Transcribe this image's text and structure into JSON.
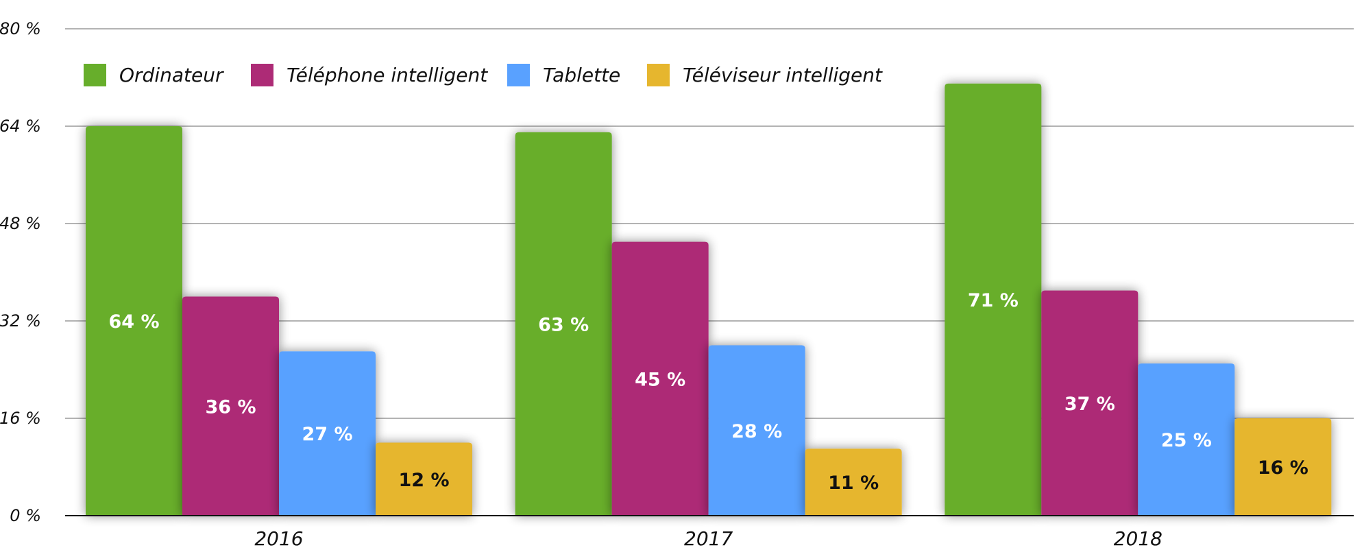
{
  "chart_data": {
    "type": "bar",
    "title": "",
    "xlabel": "",
    "ylabel": "",
    "ylim": [
      0,
      80
    ],
    "yticks": [
      0,
      16,
      32,
      48,
      64,
      80
    ],
    "ytick_labels": [
      "0 %",
      "16 %",
      "32 %",
      "48 %",
      "64 %",
      "80 %"
    ],
    "grid": true,
    "legend_position": "top-left",
    "categories": [
      "2016",
      "2017",
      "2018"
    ],
    "series": [
      {
        "name": "Ordinateur",
        "color": "#67ae2b",
        "label_color": "#ffffff",
        "values": [
          64,
          63,
          71
        ],
        "labels": [
          "64 %",
          "63 %",
          "71 %"
        ]
      },
      {
        "name": "Téléphone intelligent",
        "color": "#ad2b76",
        "label_color": "#ffffff",
        "values": [
          36,
          45,
          37
        ],
        "labels": [
          "36 %",
          "45 %",
          "37 %"
        ]
      },
      {
        "name": "Tablette",
        "color": "#59a1ff",
        "label_color": "#ffffff",
        "values": [
          27,
          28,
          25
        ],
        "labels": [
          "27 %",
          "28 %",
          "25 %"
        ]
      },
      {
        "name": "Téléviseur intelligent",
        "color": "#e6b62e",
        "label_color": "#111111",
        "values": [
          12,
          11,
          16
        ],
        "labels": [
          "12 %",
          "11 %",
          "16 %"
        ]
      }
    ]
  }
}
